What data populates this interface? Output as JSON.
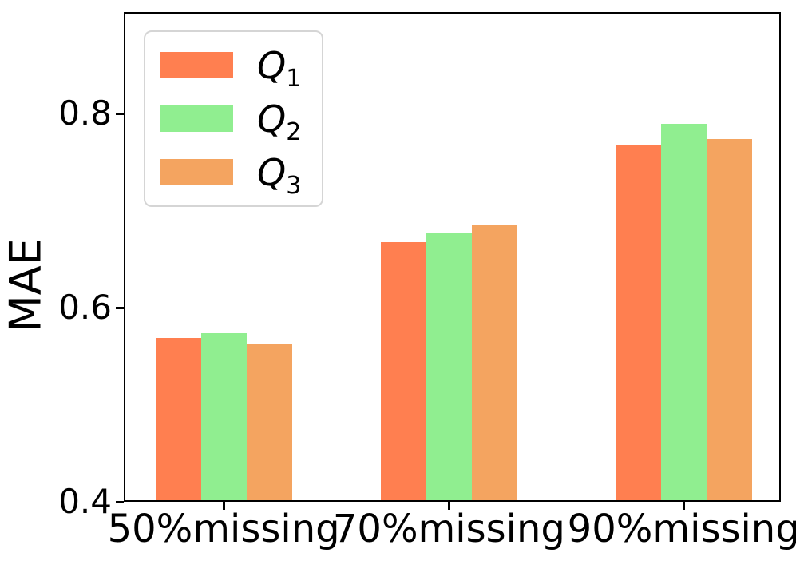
{
  "chart_data": {
    "type": "bar",
    "title": "",
    "xlabel": "",
    "ylabel": "MAE",
    "categories": [
      "50%missing",
      "70%missing",
      "90%missing"
    ],
    "series": [
      {
        "name": "Q1",
        "label_base": "Q",
        "label_sub": "1",
        "color": "#FF7F50",
        "values": [
          0.569,
          0.668,
          0.768
        ]
      },
      {
        "name": "Q2",
        "label_base": "Q",
        "label_sub": "2",
        "color": "#90EE90",
        "values": [
          0.574,
          0.678,
          0.79
        ]
      },
      {
        "name": "Q3",
        "label_base": "Q",
        "label_sub": "3",
        "color": "#F4A460",
        "values": [
          0.562,
          0.686,
          0.774
        ]
      }
    ],
    "ylim": [
      0.4,
      0.905
    ],
    "yticks": [
      0.4,
      0.6,
      0.8
    ],
    "ytick_labels": [
      "0.4",
      "0.6",
      "0.8"
    ],
    "grid": false,
    "legend_position": "upper-left",
    "axis_color": "#000000",
    "legend_border_color": "#d5d5d5",
    "background_color": "#ffffff"
  }
}
